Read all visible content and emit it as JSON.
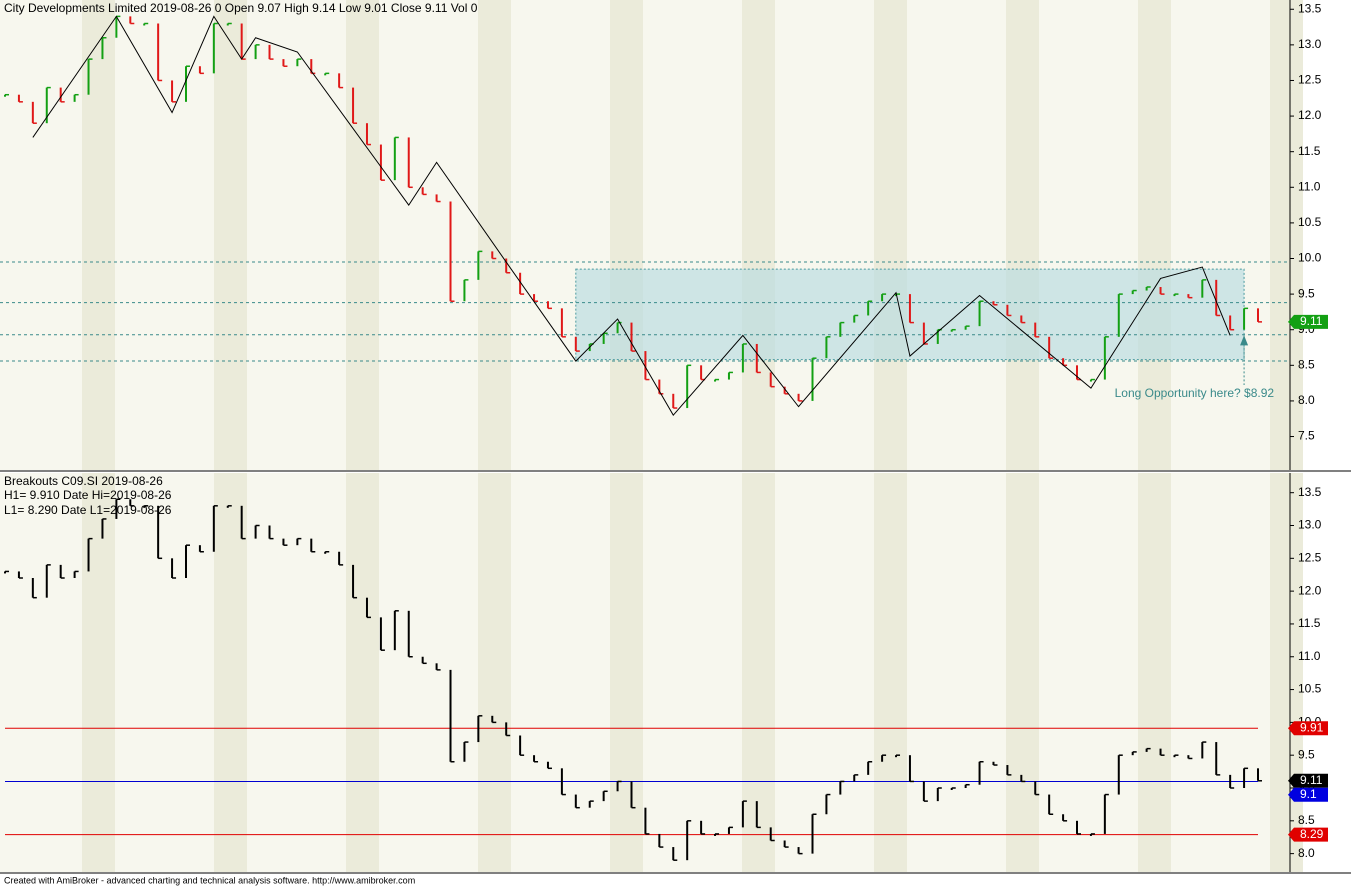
{
  "chart_data": [
    {
      "type": "ohlc",
      "title": "City Developments Limited  2019-08-26  0  Open 9.07  High 9.14  Low 9.01  Close 9.11  Vol 0",
      "values": [
        12.3,
        12.2,
        11.9,
        12.4,
        12.2,
        12.3,
        12.8,
        13.1,
        13.4,
        13.3,
        13.3,
        12.5,
        12.2,
        12.7,
        12.6,
        13.3,
        13.3,
        12.8,
        13.0,
        12.8,
        12.7,
        12.8,
        12.6,
        12.6,
        12.4,
        11.9,
        11.6,
        11.1,
        11.7,
        11.0,
        10.9,
        10.8,
        9.4,
        9.7,
        10.1,
        10.0,
        9.8,
        9.5,
        9.4,
        9.3,
        8.9,
        8.7,
        8.8,
        8.95,
        9.1,
        8.7,
        8.3,
        8.1,
        7.9,
        8.5,
        8.3,
        8.3,
        8.4,
        8.8,
        8.4,
        8.2,
        8.1,
        8.0,
        8.6,
        8.9,
        9.1,
        9.2,
        9.4,
        9.5,
        9.5,
        9.1,
        8.8,
        9.0,
        9.0,
        9.05,
        9.4,
        9.35,
        9.2,
        9.1,
        8.9,
        8.6,
        8.5,
        8.3,
        8.3,
        8.9,
        9.5,
        9.55,
        9.6,
        9.5,
        9.5,
        9.45,
        9.7,
        9.2,
        9.0,
        9.3,
        9.11
      ],
      "up_color": "#13a013",
      "down_color": "#e01818",
      "zigzag": {
        "x": [
          2,
          8,
          12,
          15,
          17,
          18,
          21,
          29,
          31,
          36,
          41,
          44,
          48,
          53,
          57,
          64,
          65,
          70,
          78,
          83,
          86,
          88
        ],
        "values": [
          11.7,
          13.4,
          12.05,
          13.4,
          12.8,
          13.1,
          12.9,
          10.75,
          11.35,
          9.95,
          8.56,
          9.15,
          7.8,
          8.92,
          7.92,
          9.52,
          8.63,
          9.48,
          8.18,
          9.72,
          9.88,
          8.92
        ]
      },
      "levels": [
        9.95,
        9.38,
        8.93,
        8.56
      ],
      "box": {
        "x": [
          41,
          89
        ],
        "values": [
          8.58,
          9.85
        ]
      },
      "annotation": "Long Opportunity here? $8.92",
      "arrow": {
        "x": 89,
        "value": 8.92
      },
      "tags": [
        {
          "value": 9.11,
          "label": "9.11",
          "color": "#13a013"
        }
      ],
      "ylim": [
        7.03,
        13.63
      ],
      "yticks": [
        {
          "value": 7.5,
          "label": "7.5"
        },
        {
          "value": 8,
          "label": "8.0"
        },
        {
          "value": 8.5,
          "label": "8.5"
        },
        {
          "value": 9,
          "label": "9.0"
        },
        {
          "value": 9.5,
          "label": "9.5"
        },
        {
          "value": 10,
          "label": "10.0"
        },
        {
          "value": 10.5,
          "label": "10.5"
        },
        {
          "value": 11,
          "label": "11.0"
        },
        {
          "value": 11.5,
          "label": "11.5"
        },
        {
          "value": 12,
          "label": "12.0"
        },
        {
          "value": 12.5,
          "label": "12.5"
        },
        {
          "value": 13,
          "label": "13.0"
        },
        {
          "value": 13.5,
          "label": "13.5"
        }
      ]
    },
    {
      "type": "ohlc",
      "title": "Breakouts C09.SI 2019-08-26",
      "notes": [
        "H1=   9.910 Date Hi=2019-08-26",
        "L1=   8.290 Date L1=2019-08-26"
      ],
      "up_color": "#000000",
      "down_color": "#000000",
      "lines": [
        {
          "value": 9.91,
          "color": "#e00000"
        },
        {
          "value": 9.1,
          "color": "#0000d0"
        },
        {
          "value": 8.29,
          "color": "#e00000"
        }
      ],
      "tags": [
        {
          "value": 9.91,
          "label": "9.91",
          "color": "#e00000"
        },
        {
          "value": 9.11,
          "label": "9.11",
          "color": "#000000"
        },
        {
          "value": 9.1,
          "label": "9.1",
          "color": "#0000e0"
        },
        {
          "value": 8.29,
          "label": "8.29",
          "color": "#e00000"
        }
      ],
      "ylim": [
        7.72,
        13.8
      ],
      "yticks": [
        {
          "value": 8,
          "label": "8.0"
        },
        {
          "value": 8.5,
          "label": "8.5"
        },
        {
          "value": 9,
          "label": "9.0"
        },
        {
          "value": 9.5,
          "label": "9.5"
        },
        {
          "value": 10,
          "label": "10.0"
        },
        {
          "value": 10.5,
          "label": "10.5"
        },
        {
          "value": 11,
          "label": "11.0"
        },
        {
          "value": 11.5,
          "label": "11.5"
        },
        {
          "value": 12,
          "label": "12.0"
        },
        {
          "value": 12.5,
          "label": "12.5"
        },
        {
          "value": 13,
          "label": "13.0"
        },
        {
          "value": 13.5,
          "label": "13.5"
        }
      ]
    }
  ],
  "footer": "Created with AmiBroker - advanced charting and technical analysis software. http://www.amibroker.com"
}
